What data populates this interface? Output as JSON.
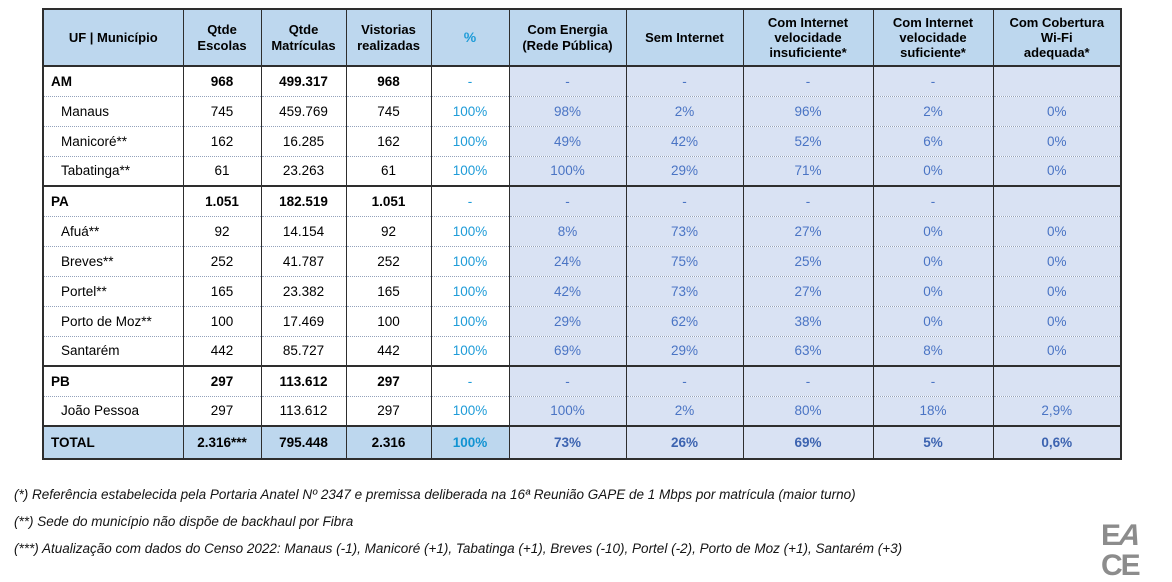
{
  "colors": {
    "header_bg": "#BDD7EE",
    "right_columns_bg": "#D9E2F3",
    "total_row_bg": "#BDD7EE",
    "percent_column_blue": "#1F9CD8",
    "right_values_blue": "#4A74C4",
    "total_values_blue": "#3C63B0",
    "border_dark": "#2e2e2e",
    "logo_gray": "#8C8C8C"
  },
  "table": {
    "columns": [
      "UF | Município",
      "Qtde\nEscolas",
      "Qtde\nMatrículas",
      "Vistorias\nrealizadas",
      "%",
      "Com Energia\n(Rede Pública)",
      "Sem Internet",
      "Com Internet\nvelocidade\ninsuficiente*",
      "Com Internet\nvelocidade\nsuficiente*",
      "Com Cobertura\nWi-Fi\nadequada*"
    ],
    "rows": [
      {
        "type": "state",
        "cells": [
          "AM",
          "968",
          "499.317",
          "968",
          "-",
          "-",
          "-",
          "-",
          "-",
          ""
        ]
      },
      {
        "type": "muni",
        "cells": [
          "Manaus",
          "745",
          "459.769",
          "745",
          "100%",
          "98%",
          "2%",
          "96%",
          "2%",
          "0%"
        ]
      },
      {
        "type": "muni",
        "cells": [
          "Manicoré**",
          "162",
          "16.285",
          "162",
          "100%",
          "49%",
          "42%",
          "52%",
          "6%",
          "0%"
        ]
      },
      {
        "type": "muni",
        "cells": [
          "Tabatinga**",
          "61",
          "23.263",
          "61",
          "100%",
          "100%",
          "29%",
          "71%",
          "0%",
          "0%"
        ]
      },
      {
        "type": "state",
        "cells": [
          "PA",
          "1.051",
          "182.519",
          "1.051",
          "-",
          "-",
          "-",
          "-",
          "-",
          ""
        ]
      },
      {
        "type": "muni",
        "cells": [
          "Afuá**",
          "92",
          "14.154",
          "92",
          "100%",
          "8%",
          "73%",
          "27%",
          "0%",
          "0%"
        ]
      },
      {
        "type": "muni",
        "cells": [
          "Breves**",
          "252",
          "41.787",
          "252",
          "100%",
          "24%",
          "75%",
          "25%",
          "0%",
          "0%"
        ]
      },
      {
        "type": "muni",
        "cells": [
          "Portel**",
          "165",
          "23.382",
          "165",
          "100%",
          "42%",
          "73%",
          "27%",
          "0%",
          "0%"
        ]
      },
      {
        "type": "muni",
        "cells": [
          "Porto de Moz**",
          "100",
          "17.469",
          "100",
          "100%",
          "29%",
          "62%",
          "38%",
          "0%",
          "0%"
        ]
      },
      {
        "type": "muni",
        "cells": [
          "Santarém",
          "442",
          "85.727",
          "442",
          "100%",
          "69%",
          "29%",
          "63%",
          "8%",
          "0%"
        ]
      },
      {
        "type": "state",
        "cells": [
          "PB",
          "297",
          "113.612",
          "297",
          "-",
          "-",
          "-",
          "-",
          "-",
          ""
        ]
      },
      {
        "type": "muni",
        "cells": [
          "João Pessoa",
          "297",
          "113.612",
          "297",
          "100%",
          "100%",
          "2%",
          "80%",
          "18%",
          "2,9%"
        ]
      },
      {
        "type": "total",
        "cells": [
          "TOTAL",
          "2.316***",
          "795.448",
          "2.316",
          "100%",
          "73%",
          "26%",
          "69%",
          "5%",
          "0,6%"
        ]
      }
    ]
  },
  "footnotes": [
    "(*) Referência estabelecida pela Portaria Anatel Nº 2347 e premissa deliberada na 16ª Reunião GAPE de 1 Mbps por matrícula (maior turno)",
    "(**) Sede do município não dispõe de backhaul por Fibra",
    "(***) Atualização com dados do Censo 2022: Manaus (-1), Manicoré (+1), Tabatinga (+1), Breves (-10), Portel (-2), Porto de Moz (+1), Santarém (+3)"
  ],
  "logo": {
    "letters": [
      "E",
      "A",
      "C",
      "E"
    ]
  }
}
